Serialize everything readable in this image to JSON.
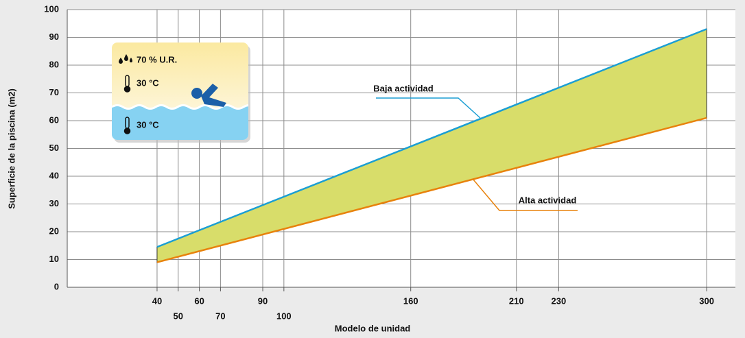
{
  "chart_data": {
    "type": "line",
    "xlabel": "Modelo de unidad",
    "ylabel": "Superficie de la piscina (m2)",
    "x": [
      40,
      300
    ],
    "series": [
      {
        "name": "Baja actividad",
        "color": "#1b9ed3",
        "values": [
          14.5,
          93
        ]
      },
      {
        "name": "Alta actividad",
        "color": "#e8820c",
        "values": [
          9,
          61
        ]
      }
    ],
    "fill_between": "#d8dd6a",
    "xlim": [
      -2.5,
      313.6
    ],
    "xticks": [
      40,
      50,
      60,
      70,
      90,
      100,
      160,
      210,
      230,
      300
    ],
    "ylim": [
      0,
      100
    ],
    "yticks": [
      0,
      10,
      20,
      30,
      40,
      50,
      60,
      70,
      80,
      90,
      100
    ],
    "grid": true,
    "inset": {
      "humidity": "70 % U.R.",
      "air_temp": "30 °C",
      "water_temp": "30 °C"
    }
  }
}
